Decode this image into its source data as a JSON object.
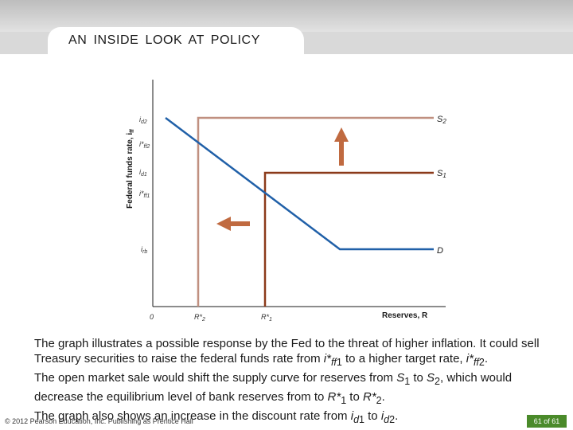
{
  "header": {
    "title": "AN INSIDE LOOK AT POLICY"
  },
  "graph": {
    "y_axis_label": "Federal funds rate, i",
    "y_axis_sub": "ff",
    "x_axis_label": "Reserves, R",
    "origin_label": "0",
    "y_ticks": [
      {
        "main": "i",
        "sub": "d2"
      },
      {
        "main": "i*",
        "sub": "ff2"
      },
      {
        "main": "i",
        "sub": "d1"
      },
      {
        "main": "i*",
        "sub": "ff1"
      },
      {
        "main": "i",
        "sub": "rb"
      }
    ],
    "x_ticks": [
      {
        "main": "R*",
        "sub": "2"
      },
      {
        "main": "R*",
        "sub": "1"
      }
    ],
    "curves": {
      "s2": {
        "main": "S",
        "sub": "2"
      },
      "s1": {
        "main": "S",
        "sub": "1"
      },
      "d": {
        "main": "D"
      }
    },
    "colors": {
      "s2": "#c09080",
      "s1": "#8b3a1a",
      "demand": "#2060a8",
      "arrow": "#c06a40"
    }
  },
  "caption": [
    "The graph illustrates a possible response by the Fed to the threat of higher inflation. It could sell Treasury securities to raise the federal funds rate from i*ff1 to a higher target rate, i*ff2.",
    "The open market sale would shift the supply curve for reserves from S1 to S2, which would decrease the equilibrium level of bank reserves from to R*1 to R*2.",
    "The graph also shows an increase in the discount rate from id1 to id2."
  ],
  "footer": {
    "copyright": "© 2012 Pearson Education, Inc. Publishing as Prentice Hall",
    "page": "61 of 61"
  }
}
